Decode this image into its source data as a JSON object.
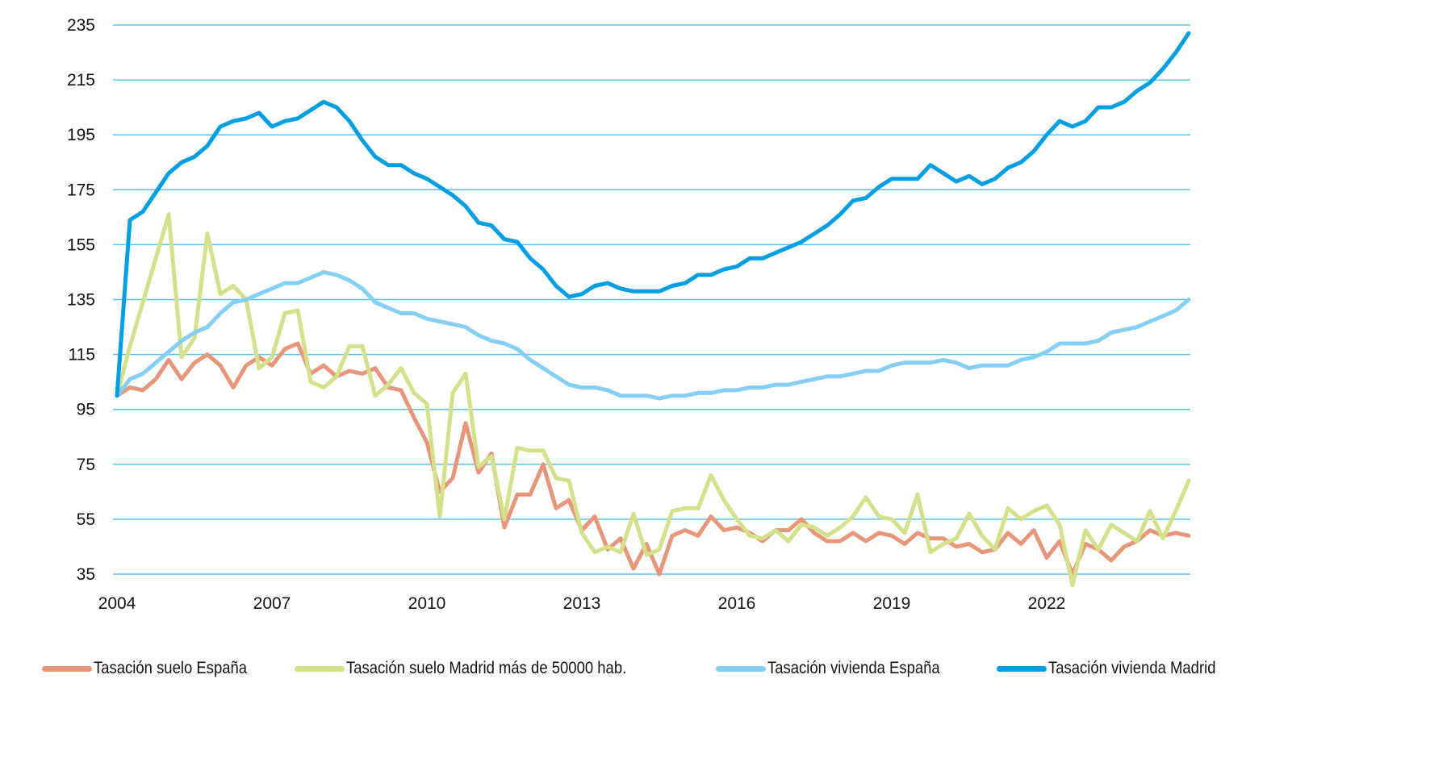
{
  "chart_data": {
    "type": "line",
    "title": "",
    "xlabel": "",
    "ylabel": "",
    "ylim": [
      35,
      235
    ],
    "yticks": [
      35,
      55,
      75,
      95,
      115,
      135,
      155,
      175,
      195,
      215,
      235
    ],
    "xticks": [
      "2004",
      "2007",
      "2010",
      "2013",
      "2016",
      "2019",
      "2022"
    ],
    "x_start": "2004Q1",
    "x_frequency": "quarterly",
    "grid": "horizontal",
    "legend_position": "bottom",
    "series": [
      {
        "name": "Tasación suelo España",
        "color": "#E8967A",
        "values": [
          100,
          103,
          102,
          106,
          113,
          106,
          112,
          115,
          111,
          103,
          111,
          114,
          111,
          117,
          119,
          108,
          111,
          107,
          109,
          108,
          110,
          103,
          102,
          92,
          83,
          65,
          70,
          90,
          72,
          79,
          52,
          64,
          64,
          75,
          59,
          62,
          51,
          56,
          44,
          48,
          37,
          46,
          35,
          49,
          51,
          49,
          56,
          51,
          52,
          50,
          47,
          51,
          51,
          55,
          50,
          47,
          47,
          50,
          47,
          50,
          49,
          46,
          50,
          48,
          48,
          45,
          46,
          43,
          44,
          50,
          46,
          51,
          41,
          47,
          35,
          46,
          44,
          40,
          45,
          47,
          51,
          49,
          50,
          49
        ]
      },
      {
        "name": "Tasación suelo Madrid más de 50000 hab.",
        "color": "#D4E08A",
        "values": [
          100,
          118,
          134,
          150,
          166,
          114,
          121,
          159,
          137,
          140,
          135,
          110,
          114,
          130,
          131,
          105,
          103,
          107,
          118,
          118,
          100,
          104,
          110,
          101,
          97,
          56,
          101,
          108,
          74,
          78,
          55,
          81,
          80,
          80,
          70,
          69,
          50,
          43,
          45,
          43,
          57,
          42,
          44,
          58,
          59,
          59,
          71,
          62,
          55,
          49,
          48,
          51,
          47,
          53,
          52,
          49,
          52,
          56,
          63,
          56,
          55,
          50,
          64,
          43,
          46,
          48,
          57,
          49,
          44,
          59,
          55,
          58,
          60,
          53,
          31,
          51,
          44,
          53,
          50,
          47,
          58,
          48,
          58,
          69
        ]
      },
      {
        "name": "Tasación vivienda España",
        "color": "#85CFF5",
        "values": [
          100,
          106,
          108,
          112,
          116,
          120,
          123,
          125,
          130,
          134,
          135,
          137,
          139,
          141,
          141,
          143,
          145,
          144,
          142,
          139,
          134,
          132,
          130,
          130,
          128,
          127,
          126,
          125,
          122,
          120,
          119,
          117,
          113,
          110,
          107,
          104,
          103,
          103,
          102,
          100,
          100,
          100,
          99,
          100,
          100,
          101,
          101,
          102,
          102,
          103,
          103,
          104,
          104,
          105,
          106,
          107,
          107,
          108,
          109,
          109,
          111,
          112,
          112,
          112,
          113,
          112,
          110,
          111,
          111,
          111,
          113,
          114,
          116,
          119,
          119,
          119,
          120,
          123,
          124,
          125,
          127,
          129,
          131,
          135
        ]
      },
      {
        "name": "Tasación vivienda Madrid",
        "color": "#009FE3",
        "values": [
          100,
          164,
          167,
          174,
          181,
          185,
          187,
          191,
          198,
          200,
          201,
          203,
          198,
          200,
          201,
          204,
          207,
          205,
          200,
          193,
          187,
          184,
          184,
          181,
          179,
          176,
          173,
          169,
          163,
          162,
          157,
          156,
          150,
          146,
          140,
          136,
          137,
          140,
          141,
          139,
          138,
          138,
          138,
          140,
          141,
          144,
          144,
          146,
          147,
          150,
          150,
          152,
          154,
          156,
          159,
          162,
          166,
          171,
          172,
          176,
          179,
          179,
          179,
          184,
          181,
          178,
          180,
          177,
          179,
          183,
          185,
          189,
          195,
          200,
          198,
          200,
          205,
          205,
          207,
          211,
          214,
          219,
          225,
          232
        ]
      }
    ]
  }
}
